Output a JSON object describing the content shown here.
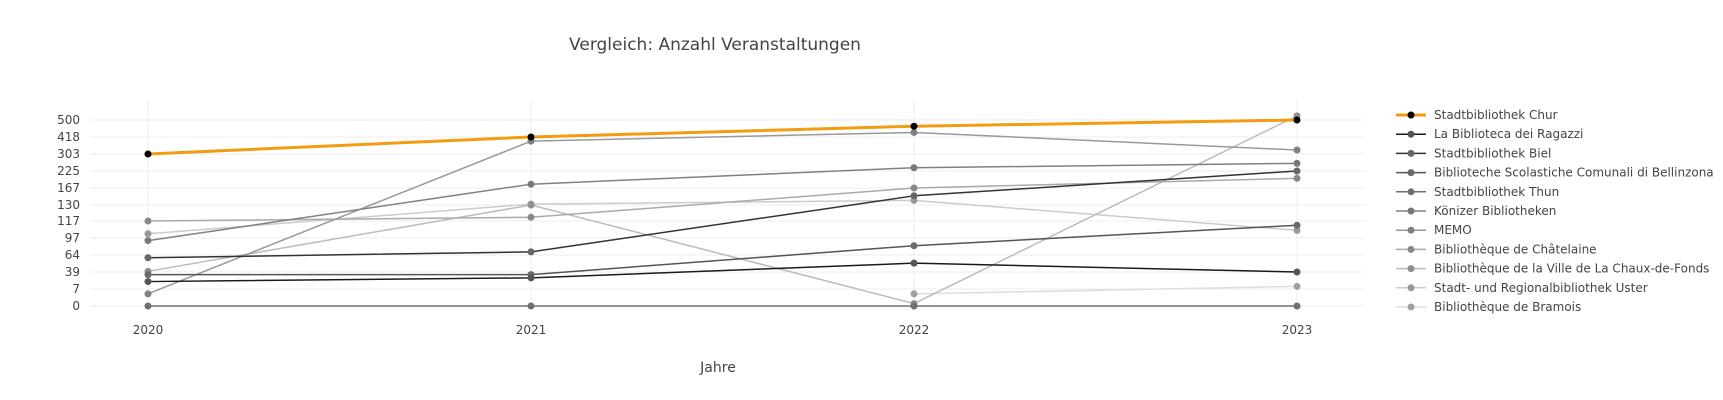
{
  "chart_data": {
    "type": "line",
    "title": "Vergleich: Anzahl Veranstaltungen",
    "xlabel": "Jahre",
    "ylabel": "",
    "x": [
      "2020",
      "2021",
      "2022",
      "2023"
    ],
    "y_ticks": [
      "0",
      "7",
      "39",
      "64",
      "97",
      "117",
      "130",
      "167",
      "225",
      "303",
      "418",
      "500"
    ],
    "grid": true,
    "legend_position": "right",
    "series": [
      {
        "name": "Stadtbibliothek Chur",
        "color": "#f39c12",
        "marker": "#000000",
        "width": 3,
        "values": [
          303,
          418,
          470,
          500
        ]
      },
      {
        "name": "La Biblioteca dei Ragazzi",
        "color": "#1a1a1a",
        "marker": "#555555",
        "width": 1.5,
        "values": [
          21,
          28,
          52,
          39
        ]
      },
      {
        "name": "Stadtbibliothek Biel",
        "color": "#333333",
        "marker": "#666666",
        "width": 1.5,
        "values": [
          60,
          70,
          150,
          225
        ]
      },
      {
        "name": "Biblioteche Scolastiche Comunali di Bellinzona",
        "color": "#555555",
        "marker": "#6a6a6a",
        "width": 1.5,
        "values": [
          34,
          34,
          82,
          112
        ]
      },
      {
        "name": "Stadtbibliothek Thun",
        "color": "#707070",
        "marker": "#707070",
        "width": 1.5,
        "values": [
          0,
          0,
          0,
          0
        ]
      },
      {
        "name": "Könizer Bibliotheken",
        "color": "#808080",
        "marker": "#787878",
        "width": 1.5,
        "values": [
          92,
          180,
          240,
          260
        ]
      },
      {
        "name": "MEMO",
        "color": "#999999",
        "marker": "#808080",
        "width": 1.5,
        "values": [
          5,
          390,
          440,
          330
        ]
      },
      {
        "name": "Bibliothèque de Châtelaine",
        "color": "#aaaaaa",
        "marker": "#888888",
        "width": 1.5,
        "values": [
          117,
          120,
          167,
          200
        ]
      },
      {
        "name": "Bibliothèque de la Ville de La Chaux-de-Fonds",
        "color": "#bbbbbb",
        "marker": "#909090",
        "width": 1.5,
        "values": [
          40,
          130,
          1,
          520
        ]
      },
      {
        "name": "Stadt- und Regionalbibliothek Uster",
        "color": "#cccccc",
        "marker": "#989898",
        "width": 1.5,
        "values": [
          102,
          132,
          140,
          106
        ]
      },
      {
        "name": "Bibliothèque de Bramois",
        "color": "#dddddd",
        "marker": "#a0a0a0",
        "width": 1.5,
        "values": [
          null,
          null,
          5,
          12
        ]
      }
    ]
  }
}
